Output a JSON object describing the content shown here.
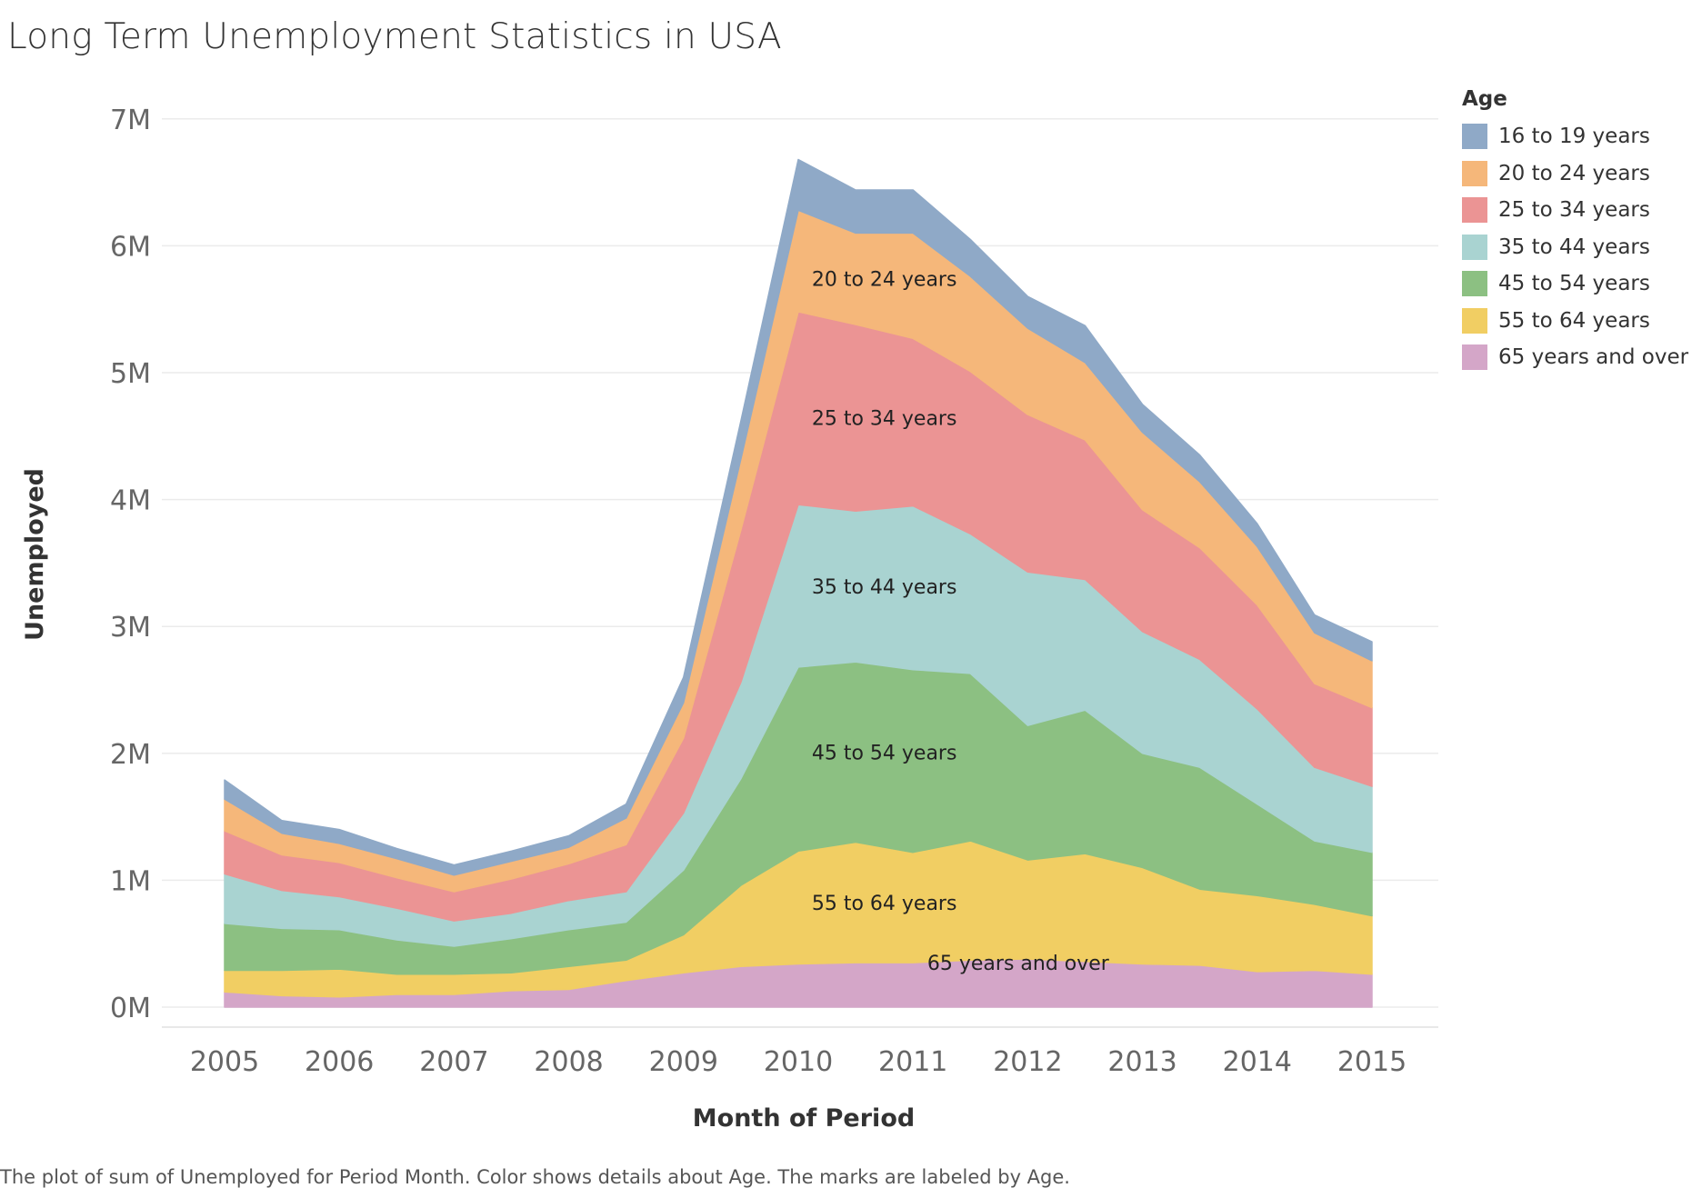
{
  "title": "Long Term Unemployment Statistics in USA",
  "caption": "The plot of sum of Unemployed for Period Month.  Color shows details about Age.  The marks are labeled by Age.",
  "legend_title": "Age",
  "chart_data": {
    "type": "area",
    "stacked": true,
    "xlabel": "Month of Period",
    "ylabel": "Unemployed",
    "x_ticks": [
      "2005",
      "2006",
      "2007",
      "2008",
      "2009",
      "2010",
      "2011",
      "2012",
      "2013",
      "2014",
      "2015"
    ],
    "y_ticks": [
      "0M",
      "1M",
      "2M",
      "3M",
      "4M",
      "5M",
      "6M",
      "7M"
    ],
    "ylim": [
      0,
      7000000
    ],
    "xlim": [
      "2004-07",
      "2015-07"
    ],
    "grid": "horizontal",
    "legend_position": "right",
    "x": [
      "2005-01",
      "2005-07",
      "2006-01",
      "2006-07",
      "2007-01",
      "2007-07",
      "2008-01",
      "2008-07",
      "2009-01",
      "2009-07",
      "2010-01",
      "2010-07",
      "2011-01",
      "2011-07",
      "2012-01",
      "2012-07",
      "2013-01",
      "2013-07",
      "2014-01",
      "2014-07",
      "2015-01"
    ],
    "series": [
      {
        "name": "65 years and over",
        "color": "#d4a6c8",
        "in_chart_label": "65 years and over",
        "values": [
          120000,
          90000,
          80000,
          100000,
          100000,
          130000,
          140000,
          210000,
          270000,
          320000,
          340000,
          350000,
          350000,
          370000,
          380000,
          360000,
          340000,
          330000,
          280000,
          290000,
          260000
        ]
      },
      {
        "name": "55 to 64 years",
        "color": "#f1ce63",
        "in_chart_label": "55 to 64 years",
        "values": [
          170000,
          200000,
          220000,
          160000,
          160000,
          140000,
          180000,
          160000,
          300000,
          640000,
          890000,
          950000,
          870000,
          940000,
          780000,
          850000,
          760000,
          600000,
          600000,
          520000,
          460000
        ]
      },
      {
        "name": "45 to 54 years",
        "color": "#8cc082",
        "in_chart_label": "45 to 54 years",
        "values": [
          370000,
          330000,
          310000,
          270000,
          220000,
          270000,
          290000,
          300000,
          510000,
          840000,
          1450000,
          1420000,
          1440000,
          1320000,
          1060000,
          1130000,
          900000,
          960000,
          720000,
          500000,
          500000
        ]
      },
      {
        "name": "35 to 44 years",
        "color": "#a9d3d1",
        "in_chart_label": "35 to 44 years",
        "values": [
          390000,
          300000,
          260000,
          250000,
          200000,
          200000,
          230000,
          240000,
          450000,
          760000,
          1280000,
          1190000,
          1290000,
          1100000,
          1210000,
          1030000,
          960000,
          850000,
          750000,
          580000,
          520000
        ]
      },
      {
        "name": "25 to 34 years",
        "color": "#eb9494",
        "in_chart_label": "25 to 34 years",
        "values": [
          340000,
          280000,
          270000,
          240000,
          230000,
          270000,
          290000,
          370000,
          590000,
          1200000,
          1520000,
          1470000,
          1320000,
          1280000,
          1240000,
          1100000,
          960000,
          880000,
          820000,
          660000,
          620000
        ]
      },
      {
        "name": "20 to 24 years",
        "color": "#f5b77a",
        "in_chart_label": "20 to 24 years",
        "values": [
          250000,
          170000,
          150000,
          150000,
          130000,
          140000,
          130000,
          210000,
          280000,
          560000,
          800000,
          720000,
          830000,
          750000,
          680000,
          610000,
          610000,
          520000,
          460000,
          400000,
          370000
        ]
      },
      {
        "name": "16 to 19 years",
        "color": "#8fa9c7",
        "in_chart_label": "",
        "values": [
          150000,
          100000,
          110000,
          80000,
          80000,
          80000,
          90000,
          110000,
          200000,
          300000,
          400000,
          340000,
          340000,
          290000,
          250000,
          290000,
          220000,
          210000,
          180000,
          140000,
          150000
        ]
      }
    ]
  }
}
